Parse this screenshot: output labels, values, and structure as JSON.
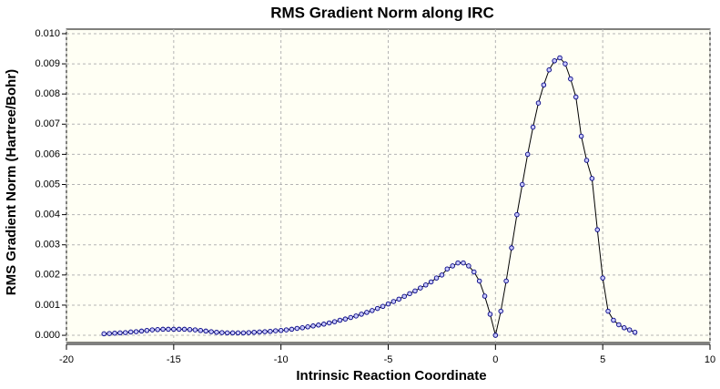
{
  "chart_data": {
    "type": "line",
    "title": "RMS Gradient Norm along IRC",
    "x_label": "Intrinsic Reaction Coordinate",
    "y_label": "RMS Gradient Norm (Hartree/Bohr)",
    "x": [
      -18.25,
      -18,
      -17.75,
      -17.5,
      -17.25,
      -17,
      -16.75,
      -16.5,
      -16.25,
      -16,
      -15.75,
      -15.5,
      -15.25,
      -15,
      -14.75,
      -14.5,
      -14.25,
      -14,
      -13.75,
      -13.5,
      -13.25,
      -13,
      -12.75,
      -12.5,
      -12.25,
      -12,
      -11.75,
      -11.5,
      -11.25,
      -11,
      -10.75,
      -10.5,
      -10.25,
      -10,
      -9.75,
      -9.5,
      -9.25,
      -9,
      -8.75,
      -8.5,
      -8.25,
      -8,
      -7.75,
      -7.5,
      -7.25,
      -7,
      -6.75,
      -6.5,
      -6.25,
      -6,
      -5.75,
      -5.5,
      -5.25,
      -5,
      -4.75,
      -4.5,
      -4.25,
      -4,
      -3.75,
      -3.5,
      -3.25,
      -3,
      -2.75,
      -2.5,
      -2.25,
      -2,
      -1.75,
      -1.5,
      -1.25,
      -1,
      -0.75,
      -0.5,
      -0.25,
      0,
      0.25,
      0.5,
      0.75,
      1,
      1.25,
      1.5,
      1.75,
      2,
      2.25,
      2.5,
      2.75,
      3,
      3.25,
      3.5,
      3.75,
      4,
      4.25,
      4.5,
      4.75,
      5,
      5.25,
      5.5,
      5.75,
      6,
      6.25,
      6.5
    ],
    "series": [
      {
        "color": "#000000",
        "marker_color": "#000080",
        "values": [
          5e-05,
          6e-05,
          7e-05,
          8e-05,
          9e-05,
          0.00011,
          0.00012,
          0.00014,
          0.00016,
          0.00018,
          0.00019,
          0.0002,
          0.0002,
          0.0002,
          0.0002,
          0.0002,
          0.00019,
          0.00018,
          0.00016,
          0.00014,
          0.00012,
          0.0001,
          9e-05,
          8e-05,
          8e-05,
          8e-05,
          8e-05,
          9e-05,
          0.0001,
          0.00011,
          0.00012,
          0.00013,
          0.00015,
          0.00016,
          0.00018,
          0.0002,
          0.00023,
          0.00025,
          0.00028,
          0.00031,
          0.00034,
          0.00037,
          0.00041,
          0.00045,
          0.0005,
          0.00054,
          0.00059,
          0.00064,
          0.0007,
          0.00076,
          0.00082,
          0.00089,
          0.00096,
          0.00104,
          0.00112,
          0.0012,
          0.00129,
          0.00138,
          0.00147,
          0.00157,
          0.00167,
          0.00177,
          0.0019,
          0.002,
          0.0022,
          0.0023,
          0.0024,
          0.0024,
          0.0023,
          0.0021,
          0.0018,
          0.0013,
          0.0007,
          0,
          0.0008,
          0.0018,
          0.0029,
          0.004,
          0.005,
          0.006,
          0.0069,
          0.0077,
          0.0083,
          0.0088,
          0.0091,
          0.0092,
          0.009,
          0.0085,
          0.0079,
          0.0066,
          0.0058,
          0.0052,
          0.0035,
          0.0019,
          0.0008,
          0.0005,
          0.00035,
          0.00025,
          0.00018,
          0.0001
        ]
      }
    ],
    "xlim": [
      -20,
      10
    ],
    "ylim": [
      -0.00024,
      0.01015
    ],
    "xticks": [
      -20,
      -15,
      -10,
      -5,
      0,
      5,
      10
    ],
    "yticks": [
      {
        "value": 0,
        "label": "0.000"
      },
      {
        "value": 0.001,
        "label": "0.001"
      },
      {
        "value": 0.002,
        "label": "0.002"
      },
      {
        "value": 0.003,
        "label": "0.003"
      },
      {
        "value": 0.004,
        "label": "0.004"
      },
      {
        "value": 0.005,
        "label": "0.005"
      },
      {
        "value": 0.006,
        "label": "0.006"
      },
      {
        "value": 0.007,
        "label": "0.007"
      },
      {
        "value": 0.008,
        "label": "0.008"
      },
      {
        "value": 0.009,
        "label": "0.009"
      },
      {
        "value": 0.01,
        "label": "0.010"
      }
    ],
    "grid": true
  }
}
